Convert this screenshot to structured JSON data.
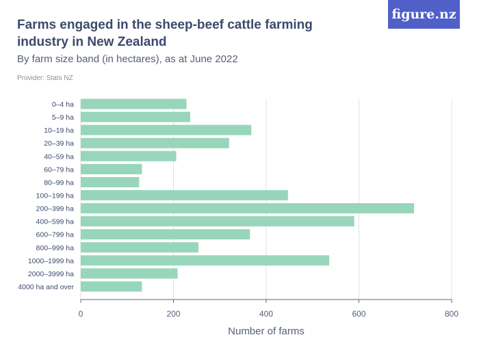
{
  "header": {
    "title": "Farms engaged in the sheep-beef cattle farming industry in New Zealand",
    "subtitle": "By farm size band (in hectares), as at June 2022",
    "provider": "Provider: Stats NZ",
    "logo": "figure.nz"
  },
  "colors": {
    "bar": "#98d6bb",
    "logo_bg": "#5060c8",
    "grid": "#e0e0e0",
    "text": "#3c4a6b"
  },
  "chart_data": {
    "type": "bar",
    "orientation": "horizontal",
    "title": "Farms engaged in the sheep-beef cattle farming industry in New Zealand",
    "subtitle": "By farm size band (in hectares), as at June 2022",
    "xlabel": "Number of farms",
    "ylabel": "",
    "xlim": [
      0,
      800
    ],
    "xticks": [
      0,
      200,
      400,
      600,
      800
    ],
    "grid": true,
    "categories": [
      "0–4 ha",
      "5–9 ha",
      "10–19 ha",
      "20–39 ha",
      "40–59 ha",
      "60–79 ha",
      "80–99 ha",
      "100–199 ha",
      "200–399 ha",
      "400–599 ha",
      "600–799 ha",
      "800–999 ha",
      "1000–1999 ha",
      "2000–3999 ha",
      "4000 ha and over"
    ],
    "values": [
      228,
      236,
      368,
      320,
      206,
      132,
      126,
      447,
      719,
      590,
      365,
      254,
      536,
      209,
      132
    ]
  }
}
